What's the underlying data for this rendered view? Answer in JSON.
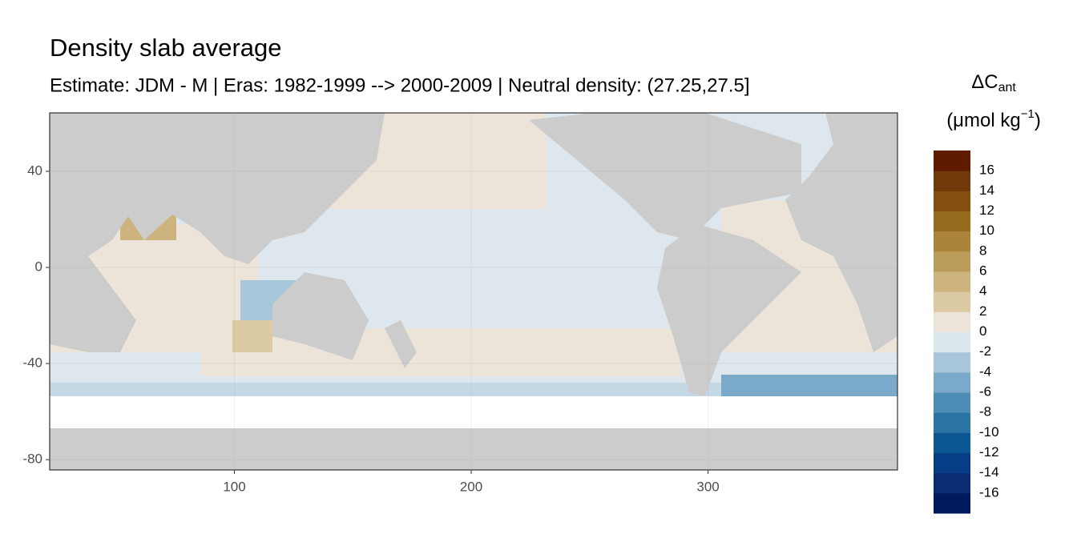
{
  "chart_data": {
    "type": "map",
    "title": "Density slab average",
    "subtitle": "Estimate: JDM - M | Eras: 1982-1999 --> 2000-2009 | Neutral density: (27.25,27.5]",
    "xlim": [
      22,
      380
    ],
    "ylim": [
      -84.3,
      64.3
    ],
    "xticks": [
      100,
      200,
      300
    ],
    "yticks": [
      40,
      0,
      -40,
      -80
    ],
    "grid": true,
    "legend": {
      "title_symbol": "ΔC",
      "title_subscript": "ant",
      "unit_base": "(μmol kg",
      "unit_exponent": "−1",
      "unit_close": ")",
      "limits": [
        -18,
        18
      ],
      "breaks": [
        -16,
        -14,
        -12,
        -10,
        -8,
        -6,
        -4,
        -2,
        0,
        2,
        4,
        6,
        8,
        10,
        12,
        14,
        16
      ],
      "colors": [
        "#00185c",
        "#0b2b73",
        "#073c86",
        "#0a5592",
        "#2a75a3",
        "#4d8db5",
        "#7ba9c9",
        "#a8c6da",
        "#dce6ed",
        "#ece4d8",
        "#dccaa5",
        "#cdb47f",
        "#bc9c5b",
        "#aa843a",
        "#956b1d",
        "#834f10",
        "#6f390a",
        "#5f1a00"
      ]
    }
  }
}
